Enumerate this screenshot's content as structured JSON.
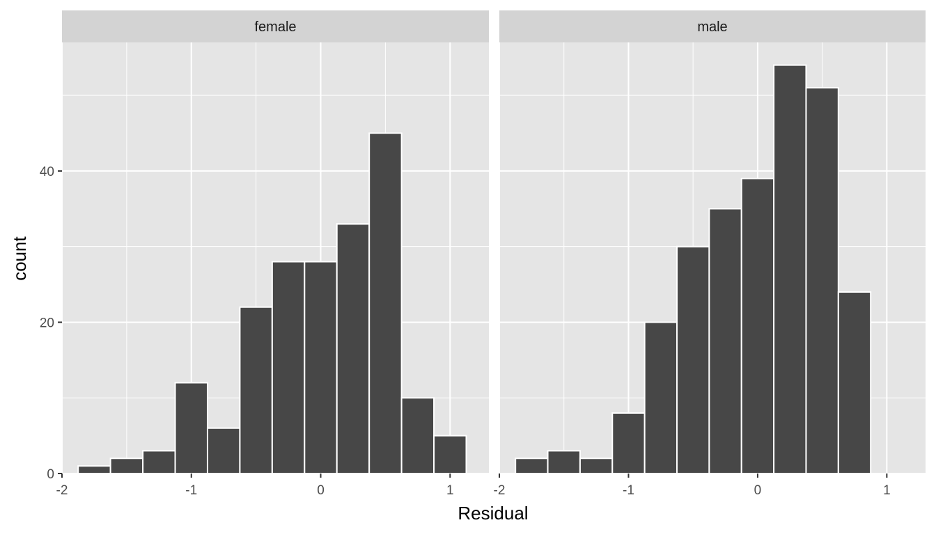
{
  "chart_data": {
    "type": "bar",
    "subtype": "histogram",
    "facet_by": "",
    "xlabel": "Residual",
    "ylabel": "count",
    "xlim": [
      -2.0,
      1.3
    ],
    "ylim": [
      0,
      57
    ],
    "x_ticks": [
      -2,
      -1,
      0,
      1
    ],
    "y_ticks": [
      0,
      20,
      40
    ],
    "bin_width": 0.25,
    "grid": true,
    "colors": {
      "panel_bg": "#e5e5e5",
      "strip_bg": "#d3d3d3",
      "grid": "#ffffff",
      "bar_fill": "#474747",
      "bar_outline": "#ffffff",
      "tick": "#333333"
    },
    "panels": [
      {
        "label": "female",
        "bins": [
          {
            "x0": -1.875,
            "x1": -1.625,
            "count": 1
          },
          {
            "x0": -1.625,
            "x1": -1.375,
            "count": 2
          },
          {
            "x0": -1.375,
            "x1": -1.125,
            "count": 3
          },
          {
            "x0": -1.125,
            "x1": -0.875,
            "count": 12
          },
          {
            "x0": -0.875,
            "x1": -0.625,
            "count": 6
          },
          {
            "x0": -0.625,
            "x1": -0.375,
            "count": 22
          },
          {
            "x0": -0.375,
            "x1": -0.125,
            "count": 28
          },
          {
            "x0": -0.125,
            "x1": 0.125,
            "count": 28
          },
          {
            "x0": 0.125,
            "x1": 0.375,
            "count": 33
          },
          {
            "x0": 0.375,
            "x1": 0.625,
            "count": 45
          },
          {
            "x0": 0.625,
            "x1": 0.875,
            "count": 10
          },
          {
            "x0": 0.875,
            "x1": 1.125,
            "count": 5
          }
        ]
      },
      {
        "label": "male",
        "bins": [
          {
            "x0": -1.875,
            "x1": -1.625,
            "count": 2
          },
          {
            "x0": -1.625,
            "x1": -1.375,
            "count": 3
          },
          {
            "x0": -1.375,
            "x1": -1.125,
            "count": 2
          },
          {
            "x0": -1.125,
            "x1": -0.875,
            "count": 8
          },
          {
            "x0": -0.875,
            "x1": -0.625,
            "count": 20
          },
          {
            "x0": -0.625,
            "x1": -0.375,
            "count": 30
          },
          {
            "x0": -0.375,
            "x1": -0.125,
            "count": 35
          },
          {
            "x0": -0.125,
            "x1": 0.125,
            "count": 39
          },
          {
            "x0": 0.125,
            "x1": 0.375,
            "count": 54
          },
          {
            "x0": 0.375,
            "x1": 0.625,
            "count": 51
          },
          {
            "x0": 0.625,
            "x1": 0.875,
            "count": 24
          }
        ]
      }
    ]
  }
}
